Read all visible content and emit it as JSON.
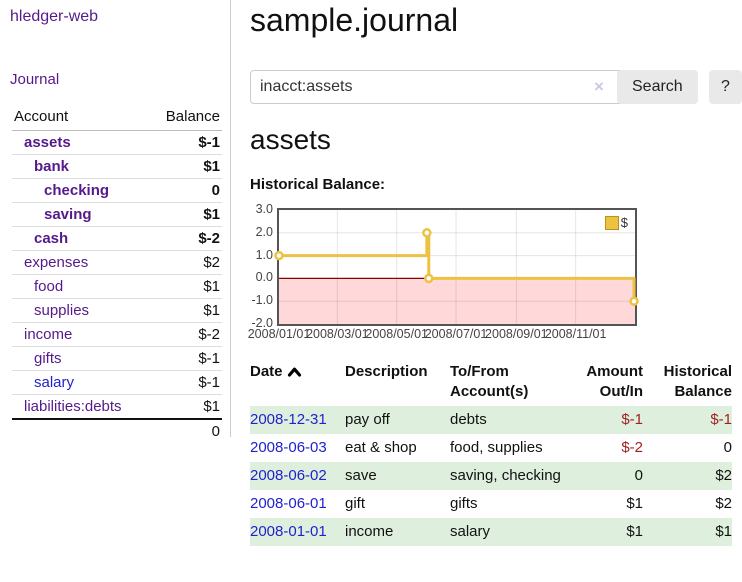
{
  "app": {
    "brand": "hledger-web",
    "nav_journal": "Journal"
  },
  "sidebar": {
    "col_account": "Account",
    "col_balance": "Balance",
    "accounts": [
      {
        "name": "assets",
        "balance": "$-1",
        "depth": 1,
        "matched": true,
        "balance_tone": "negstrong",
        "link_tone": "purple"
      },
      {
        "name": "bank",
        "balance": "$1",
        "depth": 2,
        "matched": true,
        "balance_tone": "normal",
        "link_tone": "purple"
      },
      {
        "name": "checking",
        "balance": "0",
        "depth": 3,
        "matched": true,
        "balance_tone": "normal",
        "link_tone": "purple"
      },
      {
        "name": "saving",
        "balance": "$1",
        "depth": 3,
        "matched": true,
        "balance_tone": "normal",
        "link_tone": "purple"
      },
      {
        "name": "cash",
        "balance": "$-2",
        "depth": 2,
        "matched": true,
        "balance_tone": "negstrong",
        "link_tone": "purple"
      },
      {
        "name": "expenses",
        "balance": "$2",
        "depth": 1,
        "matched": false,
        "balance_tone": "normal",
        "link_tone": "purple"
      },
      {
        "name": "food",
        "balance": "$1",
        "depth": 2,
        "matched": false,
        "balance_tone": "normal",
        "link_tone": "purple"
      },
      {
        "name": "supplies",
        "balance": "$1",
        "depth": 2,
        "matched": false,
        "balance_tone": "normal",
        "link_tone": "purple"
      },
      {
        "name": "income",
        "balance": "$-2",
        "depth": 1,
        "matched": false,
        "balance_tone": "negfaded",
        "link_tone": "purple"
      },
      {
        "name": "gifts",
        "balance": "$-1",
        "depth": 2,
        "matched": false,
        "balance_tone": "negfaded",
        "link_tone": "purple"
      },
      {
        "name": "salary",
        "balance": "$-1",
        "depth": 2,
        "matched": false,
        "balance_tone": "negfaded",
        "link_tone": "blue"
      },
      {
        "name": "liabilities:debts",
        "balance": "$1",
        "depth": 1,
        "matched": false,
        "balance_tone": "normal",
        "link_tone": "purple"
      }
    ],
    "total": "0"
  },
  "header": {
    "title": "sample.journal"
  },
  "search": {
    "value": "inacct:assets",
    "clear_icon": "×",
    "button_label": "Search",
    "help_label": "?"
  },
  "account_page": {
    "heading": "assets",
    "chart_label": "Historical Balance:"
  },
  "chart_data": {
    "type": "line",
    "title": "Historical Balance:",
    "step": true,
    "xlim": [
      0,
      366
    ],
    "ylim": [
      -2,
      3
    ],
    "grid": true,
    "legend_position": "top-right",
    "legend_label": "$",
    "series": [
      {
        "name": "$",
        "points": [
          {
            "date": "2008/01/01",
            "day": 0,
            "value": 1.0
          },
          {
            "date": "2008/06/01",
            "day": 152,
            "value": 2.0
          },
          {
            "date": "2008/06/03",
            "day": 154,
            "value": 0.0
          },
          {
            "date": "2008/12/31",
            "day": 365,
            "value": -1.0
          }
        ]
      }
    ],
    "yticks": [
      {
        "value": 3,
        "label": "3.0"
      },
      {
        "value": 2,
        "label": "2.0"
      },
      {
        "value": 1,
        "label": "1.0"
      },
      {
        "value": 0,
        "label": "0.0"
      },
      {
        "value": -1,
        "label": "-1.0"
      },
      {
        "value": -2,
        "label": "-2.0"
      }
    ],
    "xticks": [
      {
        "day": 0,
        "label": "2008/01/01"
      },
      {
        "day": 60,
        "label": "2008/03/01"
      },
      {
        "day": 121,
        "label": "2008/05/01"
      },
      {
        "day": 182,
        "label": "2008/07/01"
      },
      {
        "day": 244,
        "label": "2008/09/01"
      },
      {
        "day": 305,
        "label": "2008/11/01"
      }
    ],
    "colors": {
      "series": "#edc240",
      "marker_fill": "#ffffff",
      "negative_fill": "#ffd9d9",
      "zero_line": "#8b0000",
      "grid": "rgba(0,0,0,0.10)",
      "border": "#545454"
    }
  },
  "register": {
    "col_date": "Date",
    "col_description": "Description",
    "col_accounts": "To/From Account(s)",
    "col_amount": "Amount Out/In",
    "col_balance": "Historical Balance",
    "rows": [
      {
        "date": "2008-12-31",
        "description": "pay off",
        "accounts": "debts",
        "amount": "$-1",
        "balance": "$-1"
      },
      {
        "date": "2008-06-03",
        "description": "eat & shop",
        "accounts": "food, supplies",
        "amount": "$-2",
        "balance": "0"
      },
      {
        "date": "2008-06-02",
        "description": "save",
        "accounts": "saving, checking",
        "amount": "0",
        "balance": "$2"
      },
      {
        "date": "2008-06-01",
        "description": "gift",
        "accounts": "gifts",
        "amount": "$1",
        "balance": "$2"
      },
      {
        "date": "2008-01-01",
        "description": "income",
        "accounts": "salary",
        "amount": "$1",
        "balance": "$1"
      }
    ]
  }
}
